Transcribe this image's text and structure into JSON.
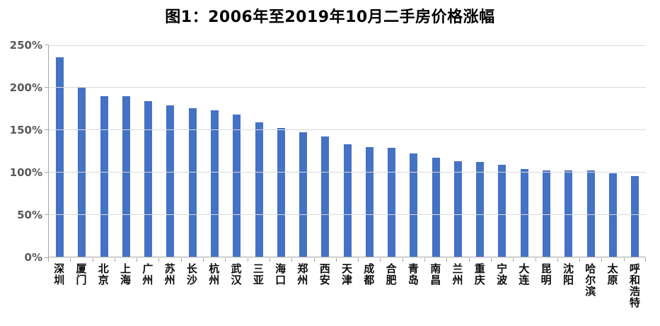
{
  "chart_data": {
    "type": "bar",
    "title": "图1：2006年至2019年10月二手房价格涨幅",
    "categories": [
      "深圳",
      "厦门",
      "北京",
      "上海",
      "广州",
      "苏州",
      "长沙",
      "杭州",
      "武汉",
      "三亚",
      "海口",
      "郑州",
      "西安",
      "天津",
      "成都",
      "合肥",
      "青岛",
      "南昌",
      "兰州",
      "重庆",
      "宁波",
      "大连",
      "昆明",
      "沈阳",
      "哈尔滨",
      "太原",
      "呼和浩特"
    ],
    "values": [
      236,
      201,
      190,
      190,
      184,
      179,
      176,
      173,
      168,
      159,
      152,
      147,
      142,
      133,
      130,
      129,
      122,
      117,
      113,
      112,
      109,
      104,
      102,
      102,
      102,
      99,
      95
    ],
    "unit": "%",
    "xlabel": "",
    "ylabel": "",
    "ylim": [
      0,
      250
    ],
    "ytick_interval": 50,
    "ytick_labels": [
      "0%",
      "50%",
      "100%",
      "150%",
      "200%",
      "250%"
    ],
    "grid": true,
    "legend": null,
    "bar_color": "#4472C4",
    "gridline_color": "#d9d9d9",
    "axis_color": "#a6a6a6",
    "ytick_label_color": "#595959",
    "category_label_color": "#0d0d0d",
    "title_color": "#000000",
    "background_color": "#ffffff"
  }
}
